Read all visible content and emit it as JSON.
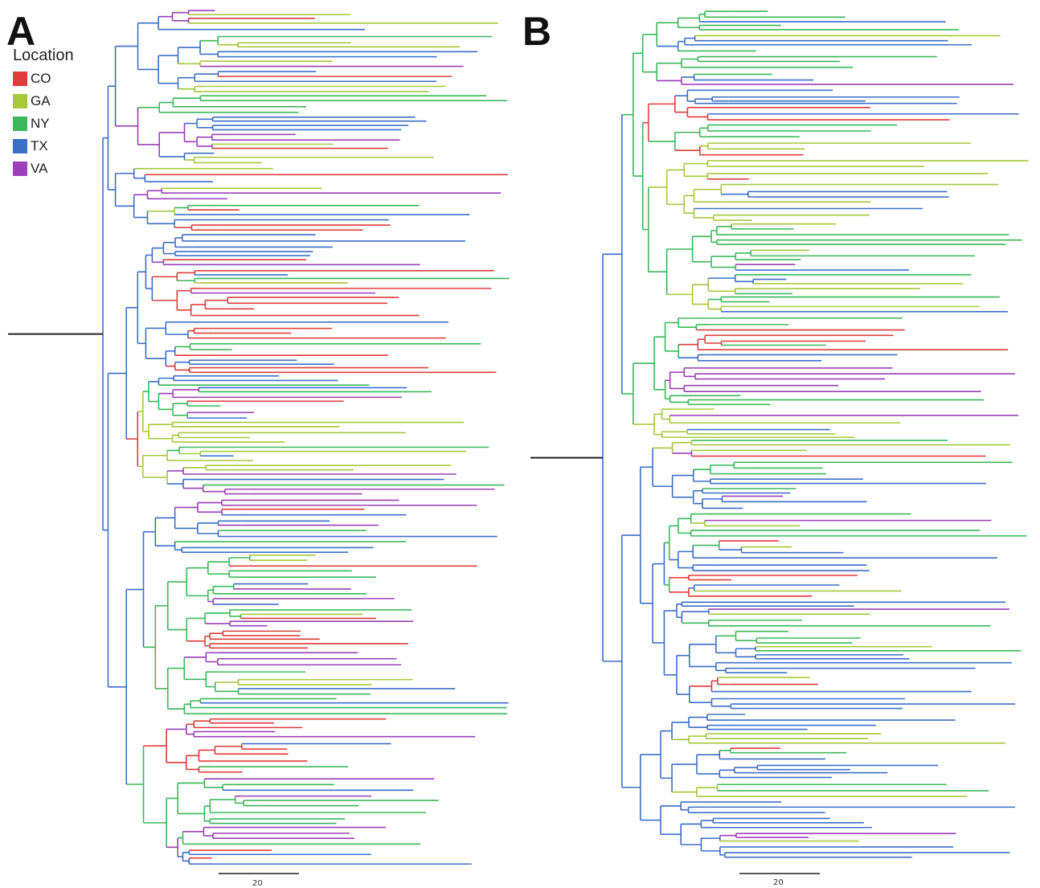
{
  "panels": [
    {
      "id": "A",
      "letter": "A",
      "scale_label": "20"
    },
    {
      "id": "B",
      "letter": "B",
      "scale_label": "20"
    }
  ],
  "legend": {
    "title": "Location",
    "items": [
      {
        "label": "CO",
        "color": "#e03c3c"
      },
      {
        "label": "GA",
        "color": "#a6c93a"
      },
      {
        "label": "NY",
        "color": "#3cb85a"
      },
      {
        "label": "TX",
        "color": "#3d6fc9"
      },
      {
        "label": "VA",
        "color": "#9b40b8"
      }
    ]
  }
}
